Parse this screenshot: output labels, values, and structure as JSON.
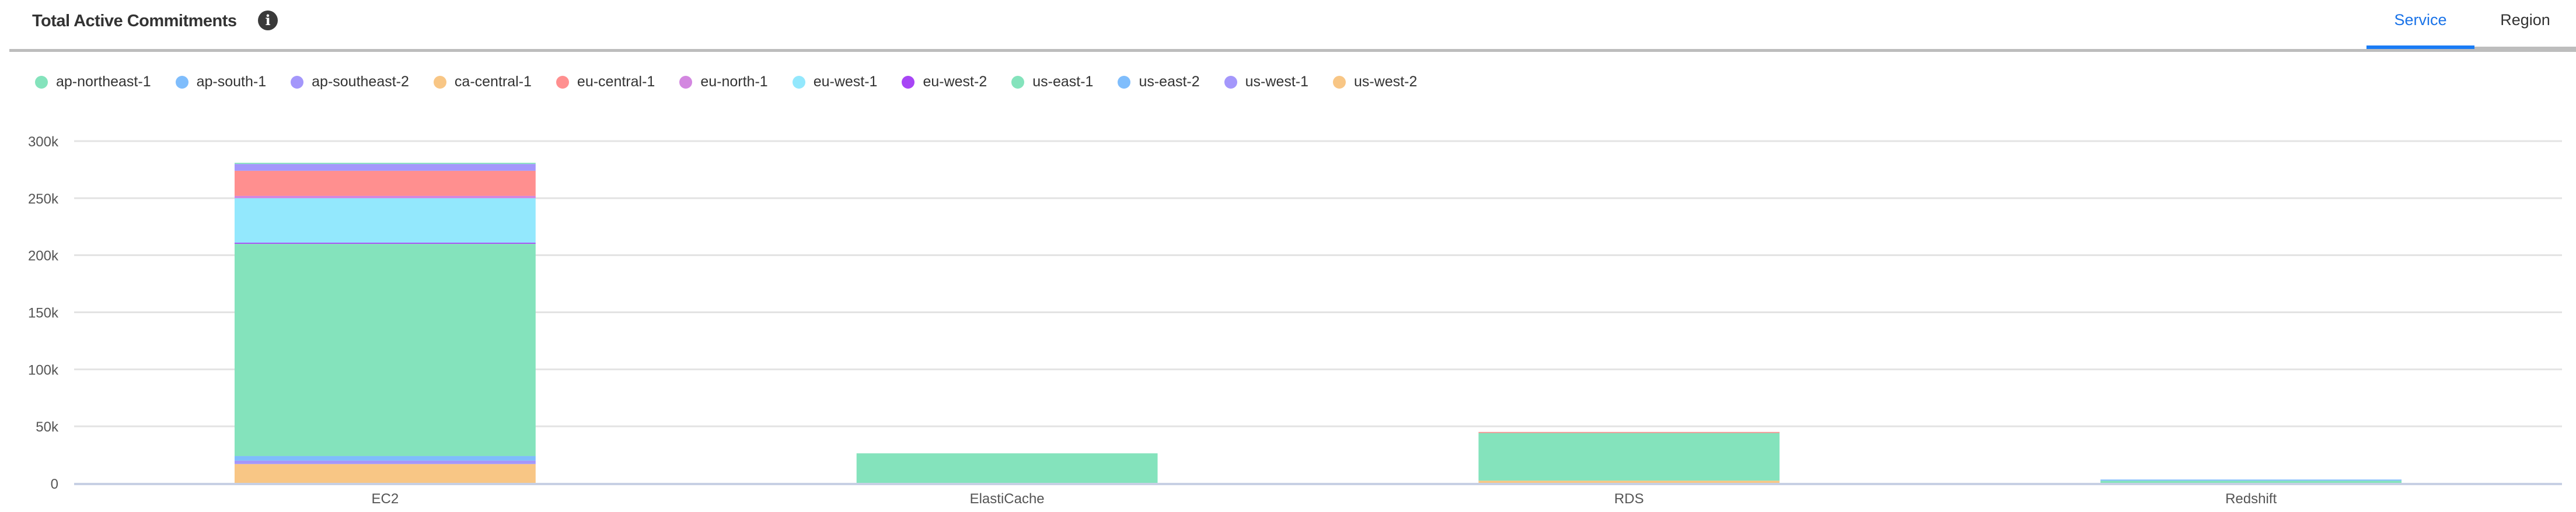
{
  "header": {
    "title": "Total Active Commitments",
    "info_icon": "info-icon",
    "tabs": [
      {
        "label": "Service",
        "active": true
      },
      {
        "label": "Region",
        "active": false
      }
    ],
    "accent_color": "#1a7cf5"
  },
  "chart_data": {
    "type": "bar",
    "stacked": true,
    "title": "",
    "xlabel": "",
    "ylabel": "",
    "categories": [
      "EC2",
      "ElastiCache",
      "RDS",
      "Redshift"
    ],
    "ylim": [
      0,
      300000
    ],
    "yticks": [
      0,
      50000,
      100000,
      150000,
      200000,
      250000,
      300000
    ],
    "ytick_labels": [
      "0",
      "50k",
      "100k",
      "150k",
      "200k",
      "250k",
      "300k"
    ],
    "grid": true,
    "legend_position": "top-left",
    "series": [
      {
        "name": "ap-northeast-1",
        "color": "#84e3bc",
        "values": [
          1000,
          0,
          0,
          0
        ]
      },
      {
        "name": "ap-south-1",
        "color": "#7fbdfc",
        "values": [
          0,
          0,
          0,
          1000
        ]
      },
      {
        "name": "ap-southeast-2",
        "color": "#a497fb",
        "values": [
          6000,
          0,
          0,
          0
        ]
      },
      {
        "name": "ca-central-1",
        "color": "#f8c685",
        "values": [
          0,
          0,
          0,
          0
        ]
      },
      {
        "name": "eu-central-1",
        "color": "#ff8f8f",
        "values": [
          22000,
          0,
          900,
          0
        ]
      },
      {
        "name": "eu-north-1",
        "color": "#d387e0",
        "values": [
          2000,
          0,
          0,
          0
        ]
      },
      {
        "name": "eu-west-1",
        "color": "#93e8fd",
        "values": [
          39000,
          0,
          0,
          0
        ]
      },
      {
        "name": "eu-west-2",
        "color": "#a745f5",
        "values": [
          1000,
          0,
          0,
          0
        ]
      },
      {
        "name": "us-east-1",
        "color": "#84e3bc",
        "values": [
          186000,
          26400,
          41800,
          2400
        ]
      },
      {
        "name": "us-east-2",
        "color": "#7fbdfc",
        "values": [
          4000,
          0,
          0,
          0
        ]
      },
      {
        "name": "us-west-1",
        "color": "#a497fb",
        "values": [
          3000,
          0,
          0,
          0
        ]
      },
      {
        "name": "us-west-2",
        "color": "#f8c685",
        "values": [
          17000,
          0,
          2400,
          0
        ]
      }
    ]
  }
}
